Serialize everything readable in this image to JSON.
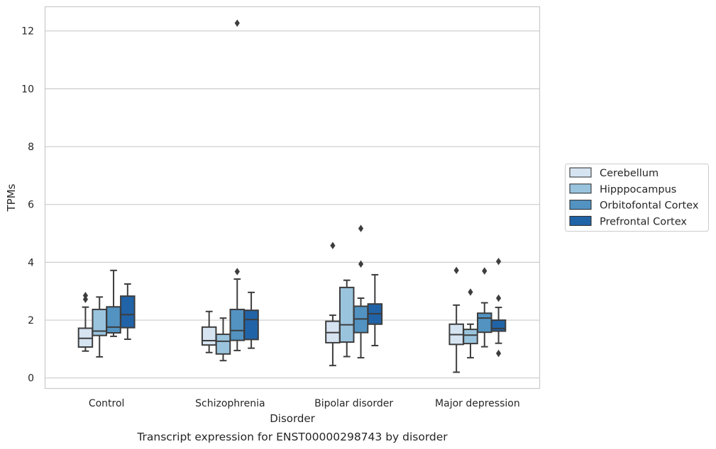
{
  "chart_data": {
    "type": "box",
    "caption": "Transcript expression for ENST00000298743 by disorder",
    "xlabel": "Disorder",
    "ylabel": "TPMs",
    "ylim": [
      -0.35,
      12.85
    ],
    "yticks": [
      0,
      2,
      4,
      6,
      8,
      10,
      12
    ],
    "grid": "horizontal",
    "legend_position": "right",
    "categories": [
      "Control",
      "Schizophrenia",
      "Bipolar disorder",
      "Major depression"
    ],
    "series": [
      {
        "name": "Cerebellum",
        "color": "#d6e4f2",
        "boxes": [
          {
            "whislo": 0.93,
            "q1": 1.07,
            "med": 1.37,
            "q3": 1.72,
            "whishi": 2.45,
            "fliers": [
              2.72,
              2.85
            ]
          },
          {
            "whislo": 0.88,
            "q1": 1.14,
            "med": 1.29,
            "q3": 1.76,
            "whishi": 2.3,
            "fliers": []
          },
          {
            "whislo": 0.43,
            "q1": 1.22,
            "med": 1.57,
            "q3": 1.96,
            "whishi": 2.17,
            "fliers": [
              4.58
            ]
          },
          {
            "whislo": 0.2,
            "q1": 1.16,
            "med": 1.5,
            "q3": 1.86,
            "whishi": 2.52,
            "fliers": [
              3.72
            ]
          }
        ]
      },
      {
        "name": "Hipppocampus",
        "color": "#9ac4de",
        "boxes": [
          {
            "whislo": 0.73,
            "q1": 1.47,
            "med": 1.62,
            "q3": 2.37,
            "whishi": 2.8,
            "fliers": []
          },
          {
            "whislo": 0.6,
            "q1": 0.83,
            "med": 1.27,
            "q3": 1.51,
            "whishi": 2.07,
            "fliers": []
          },
          {
            "whislo": 0.74,
            "q1": 1.24,
            "med": 1.84,
            "q3": 3.13,
            "whishi": 3.38,
            "fliers": []
          },
          {
            "whislo": 0.7,
            "q1": 1.19,
            "med": 1.48,
            "q3": 1.68,
            "whishi": 1.86,
            "fliers": [
              2.97
            ]
          }
        ]
      },
      {
        "name": "Orbitofontal Cortex",
        "color": "#5293c2",
        "boxes": [
          {
            "whislo": 1.44,
            "q1": 1.56,
            "med": 1.76,
            "q3": 2.46,
            "whishi": 3.72,
            "fliers": []
          },
          {
            "whislo": 0.95,
            "q1": 1.3,
            "med": 1.64,
            "q3": 2.37,
            "whishi": 3.42,
            "fliers": [
              3.68,
              12.27
            ]
          },
          {
            "whislo": 0.7,
            "q1": 1.57,
            "med": 2.04,
            "q3": 2.48,
            "whishi": 2.76,
            "fliers": [
              3.94,
              5.17
            ]
          },
          {
            "whislo": 1.08,
            "q1": 1.58,
            "med": 2.07,
            "q3": 2.24,
            "whishi": 2.6,
            "fliers": [
              3.7
            ]
          }
        ]
      },
      {
        "name": "Prefrontal Cortex",
        "color": "#2163a7",
        "boxes": [
          {
            "whislo": 1.34,
            "q1": 1.74,
            "med": 2.19,
            "q3": 2.83,
            "whishi": 3.25,
            "fliers": []
          },
          {
            "whislo": 1.03,
            "q1": 1.33,
            "med": 2.02,
            "q3": 2.34,
            "whishi": 2.96,
            "fliers": []
          },
          {
            "whislo": 1.12,
            "q1": 1.86,
            "med": 2.22,
            "q3": 2.56,
            "whishi": 3.57,
            "fliers": []
          },
          {
            "whislo": 1.2,
            "q1": 1.62,
            "med": 1.71,
            "q3": 2.0,
            "whishi": 2.44,
            "fliers": [
              0.85,
              2.76,
              4.03
            ]
          }
        ]
      }
    ]
  }
}
